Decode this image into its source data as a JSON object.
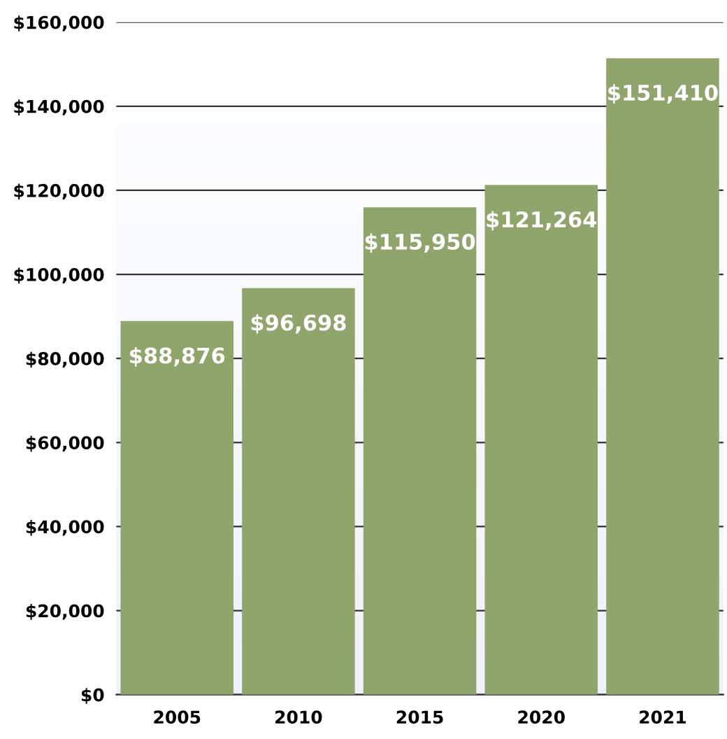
{
  "chart_data": {
    "type": "bar",
    "categories": [
      "2005",
      "2010",
      "2015",
      "2020",
      "2021"
    ],
    "values": [
      88876,
      96698,
      115950,
      121264,
      151410
    ],
    "color": "#90a56c",
    "value_labels": [
      "$88,876",
      "$96,698",
      "$115,950",
      "$121,264",
      "$151,410"
    ],
    "ylim": [
      0,
      160000
    ],
    "yticks": [
      {
        "value": 0,
        "label": "$0"
      },
      {
        "value": 20000,
        "label": "$20,000"
      },
      {
        "value": 40000,
        "label": "$40,000"
      },
      {
        "value": 60000,
        "label": "$60,000"
      },
      {
        "value": 80000,
        "label": "$80,000"
      },
      {
        "value": 100000,
        "label": "$100,000"
      },
      {
        "value": 120000,
        "label": "$120,000"
      },
      {
        "value": 140000,
        "label": "$140,000"
      },
      {
        "value": 160000,
        "label": "$160,000"
      }
    ],
    "grid": "y"
  }
}
